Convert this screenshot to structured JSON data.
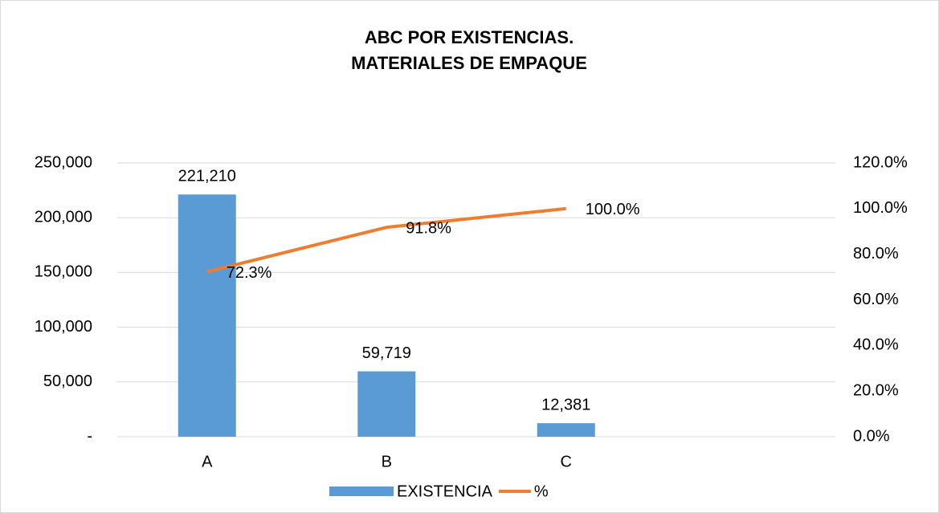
{
  "chart_data": {
    "type": "bar_line",
    "title": "ABC POR EXISTENCIAS.",
    "subtitle": "MATERIALES DE EMPAQUE",
    "categories": [
      "A",
      "B",
      "C",
      null
    ],
    "series": [
      {
        "name": "EXISTENCIA",
        "type": "bar",
        "color": "#5b9bd5",
        "values": [
          221210,
          59719,
          12381,
          null
        ],
        "value_labels": [
          "221,210",
          "59,719",
          "12,381",
          null
        ]
      },
      {
        "name": "%",
        "type": "line",
        "axis": "y2",
        "color": "#ed7d31",
        "values": [
          72.3,
          91.8,
          100.0,
          null
        ],
        "value_labels": [
          "72.3%",
          "91.8%",
          "100.0%",
          null
        ]
      }
    ],
    "ylim": [
      0,
      250000
    ],
    "yticks": [
      {
        "value": 0,
        "label": "-"
      },
      {
        "value": 50000,
        "label": "50,000"
      },
      {
        "value": 100000,
        "label": "100,000"
      },
      {
        "value": 150000,
        "label": "150,000"
      },
      {
        "value": 200000,
        "label": "200,000"
      },
      {
        "value": 250000,
        "label": "250,000"
      }
    ],
    "y2lim": [
      0,
      120
    ],
    "y2ticks": [
      {
        "value": 0,
        "label": "0.0%"
      },
      {
        "value": 20,
        "label": "20.0%"
      },
      {
        "value": 40,
        "label": "40.0%"
      },
      {
        "value": 60,
        "label": "60.0%"
      },
      {
        "value": 80,
        "label": "80.0%"
      },
      {
        "value": 100,
        "label": "100.0%"
      },
      {
        "value": 120,
        "label": "120.0%"
      }
    ],
    "grid": true,
    "legend": "bottom"
  }
}
